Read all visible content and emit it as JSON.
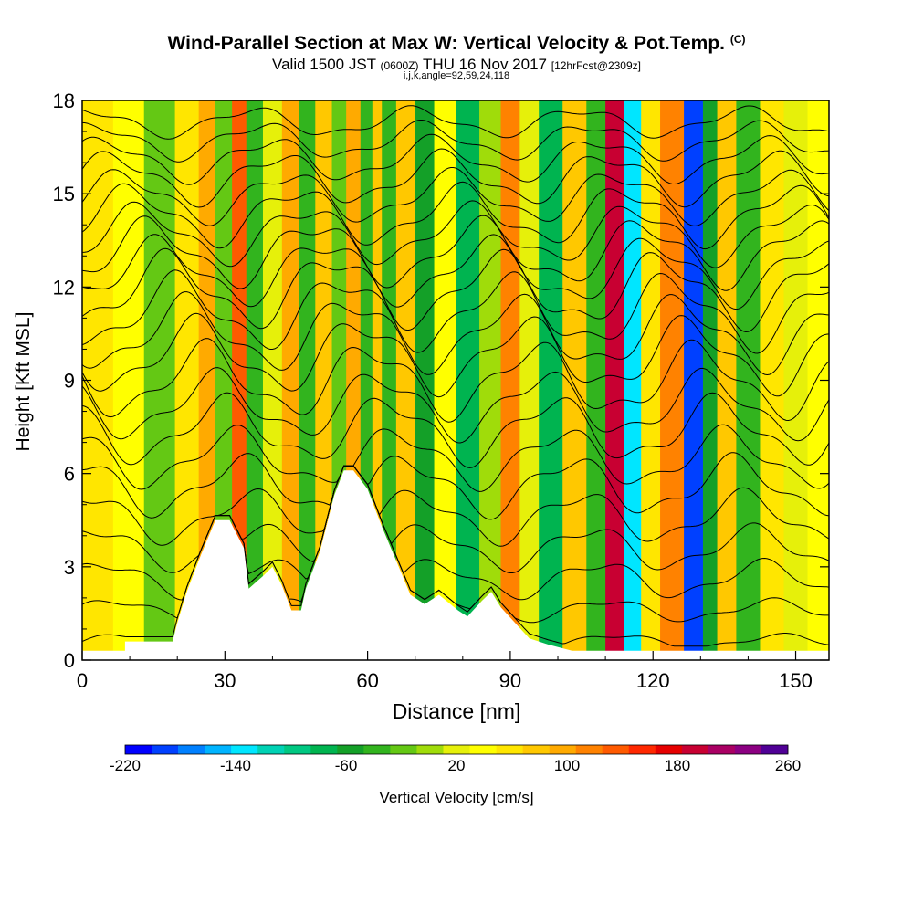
{
  "header": {
    "title": "Wind-Parallel Section at Max W: Vertical Velocity & Pot.Temp.",
    "title_tag": "(C)",
    "valid_prefix": "Valid 1500 JST",
    "valid_utc": "(0600Z)",
    "valid_date": "THU 16 Nov 2017",
    "forecast_info": "[12hrFcst@2309z]",
    "indices": "i,j,k,angle=92,59,24,118"
  },
  "colors": {
    "velocity_scale": [
      "#0000ff",
      "#0040ff",
      "#0080ff",
      "#00b4ff",
      "#00e6ff",
      "#00d2b4",
      "#00c882",
      "#00b450",
      "#14a028",
      "#32b41e",
      "#64c814",
      "#a0dc0a",
      "#e6f00a",
      "#ffff00",
      "#ffe600",
      "#ffc800",
      "#ffaa00",
      "#ff8200",
      "#ff5a00",
      "#ff2800",
      "#e60000",
      "#c80032",
      "#aa0064",
      "#8c0082",
      "#500096"
    ],
    "terrain": "#ffffff",
    "contour": "#000000"
  },
  "chart_data": {
    "type": "heatmap",
    "title": "Wind-Parallel Section at Max W: Vertical Velocity & Pot.Temp.",
    "xlabel": "Distance [nm]",
    "ylabel": "Height [Kft MSL]",
    "xlim": [
      0,
      157
    ],
    "ylim": [
      0,
      18
    ],
    "xticks": [
      0,
      30,
      60,
      90,
      120,
      150
    ],
    "yticks": [
      0,
      3,
      6,
      9,
      12,
      15,
      18
    ],
    "colorbar": {
      "label": "Vertical Velocity [cm/s]",
      "min": -220,
      "max": 260,
      "step": 20,
      "tick_values": [
        -220,
        -140,
        -60,
        20,
        100,
        180,
        260
      ]
    },
    "velocity_columns": [
      {
        "x": 3,
        "w": 70
      },
      {
        "x": 10,
        "w": 40
      },
      {
        "x": 16,
        "w": -20
      },
      {
        "x": 23,
        "w": 60
      },
      {
        "x": 26,
        "w": 100
      },
      {
        "x": 30,
        "w": -20
      },
      {
        "x": 33,
        "w": 140
      },
      {
        "x": 36,
        "w": -40
      },
      {
        "x": 40,
        "w": 30
      },
      {
        "x": 44,
        "w": 110
      },
      {
        "x": 47,
        "w": -40
      },
      {
        "x": 51,
        "w": 90
      },
      {
        "x": 54,
        "w": -20
      },
      {
        "x": 57,
        "w": 110
      },
      {
        "x": 60,
        "w": -40
      },
      {
        "x": 62,
        "w": 80
      },
      {
        "x": 64,
        "w": -40
      },
      {
        "x": 68,
        "w": 90
      },
      {
        "x": 72,
        "w": -60
      },
      {
        "x": 76,
        "w": 40
      },
      {
        "x": 81,
        "w": -80
      },
      {
        "x": 86,
        "w": 10
      },
      {
        "x": 90,
        "w": 120
      },
      {
        "x": 94,
        "w": 20
      },
      {
        "x": 98,
        "w": -80
      },
      {
        "x": 104,
        "w": 90
      },
      {
        "x": 108,
        "w": -40
      },
      {
        "x": 112,
        "w": 200
      },
      {
        "x": 116,
        "w": -140
      },
      {
        "x": 119,
        "w": 60
      },
      {
        "x": 124,
        "w": 120
      },
      {
        "x": 129,
        "w": -190
      },
      {
        "x": 132,
        "w": -60
      },
      {
        "x": 135,
        "w": 90
      },
      {
        "x": 140,
        "w": -40
      },
      {
        "x": 145,
        "w": 60
      },
      {
        "x": 150,
        "w": 20
      },
      {
        "x": 155,
        "w": 40
      }
    ],
    "terrain_profile": [
      {
        "x": 0,
        "h": 0.3
      },
      {
        "x": 9,
        "h": 0.3
      },
      {
        "x": 9,
        "h": 0.6
      },
      {
        "x": 19,
        "h": 0.6
      },
      {
        "x": 20,
        "h": 1.2
      },
      {
        "x": 22,
        "h": 2.2
      },
      {
        "x": 25,
        "h": 3.4
      },
      {
        "x": 28,
        "h": 4.5
      },
      {
        "x": 31,
        "h": 4.5
      },
      {
        "x": 34,
        "h": 3.6
      },
      {
        "x": 35,
        "h": 2.3
      },
      {
        "x": 38,
        "h": 2.7
      },
      {
        "x": 40,
        "h": 3.0
      },
      {
        "x": 42,
        "h": 2.4
      },
      {
        "x": 44,
        "h": 1.6
      },
      {
        "x": 46,
        "h": 1.6
      },
      {
        "x": 47,
        "h": 2.3
      },
      {
        "x": 50,
        "h": 3.5
      },
      {
        "x": 53,
        "h": 5.3
      },
      {
        "x": 55,
        "h": 6.1
      },
      {
        "x": 57,
        "h": 6.1
      },
      {
        "x": 60,
        "h": 5.5
      },
      {
        "x": 63,
        "h": 4.3
      },
      {
        "x": 66,
        "h": 3.2
      },
      {
        "x": 69,
        "h": 2.1
      },
      {
        "x": 72,
        "h": 1.8
      },
      {
        "x": 75,
        "h": 2.1
      },
      {
        "x": 79,
        "h": 1.6
      },
      {
        "x": 81,
        "h": 1.4
      },
      {
        "x": 84,
        "h": 1.9
      },
      {
        "x": 86,
        "h": 2.2
      },
      {
        "x": 88,
        "h": 1.7
      },
      {
        "x": 91,
        "h": 1.2
      },
      {
        "x": 94,
        "h": 0.7
      },
      {
        "x": 98,
        "h": 0.5
      },
      {
        "x": 103,
        "h": 0.3
      },
      {
        "x": 157,
        "h": 0.3
      }
    ],
    "isentropes": [
      {
        "base": 0.6,
        "amp": 0.2
      },
      {
        "base": 1.6,
        "amp": 0.3
      },
      {
        "base": 2.6,
        "amp": 0.5
      },
      {
        "base": 3.6,
        "amp": 0.6
      },
      {
        "base": 4.6,
        "amp": 0.7
      },
      {
        "base": 5.6,
        "amp": 0.8
      },
      {
        "base": 6.5,
        "amp": 0.8
      },
      {
        "base": 7.4,
        "amp": 0.9
      },
      {
        "base": 8.2,
        "amp": 0.9
      },
      {
        "base": 9.0,
        "amp": 1.0
      },
      {
        "base": 9.8,
        "amp": 1.0
      },
      {
        "base": 10.5,
        "amp": 1.0
      },
      {
        "base": 11.2,
        "amp": 1.0
      },
      {
        "base": 11.9,
        "amp": 1.0
      },
      {
        "base": 12.5,
        "amp": 0.9
      },
      {
        "base": 13.1,
        "amp": 0.9
      },
      {
        "base": 13.7,
        "amp": 0.8
      },
      {
        "base": 14.3,
        "amp": 0.8
      },
      {
        "base": 14.9,
        "amp": 0.7
      },
      {
        "base": 15.5,
        "amp": 0.7
      },
      {
        "base": 16.1,
        "amp": 0.6
      },
      {
        "base": 16.7,
        "amp": 0.5
      },
      {
        "base": 17.3,
        "amp": 0.4
      }
    ]
  }
}
